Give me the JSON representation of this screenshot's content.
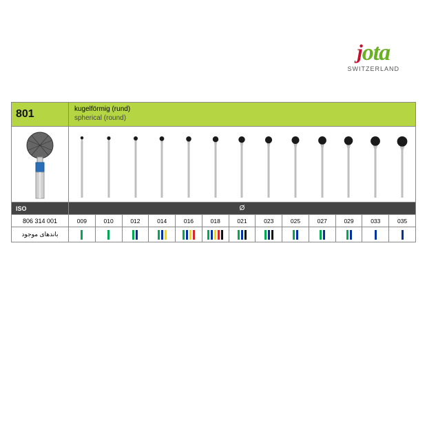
{
  "logo": {
    "j": "j",
    "ota": "ota",
    "sub": "SWITZERLAND"
  },
  "header": {
    "code": "801",
    "title_de": "kugelförmig (rund)",
    "title_en": "spherical (round)"
  },
  "iso": {
    "label": "ISO",
    "symbol": "Ø",
    "code": "806 314 001",
    "bands_label": "باندهای موجود"
  },
  "colors": {
    "green": "#00a651",
    "blue": "#0033a0",
    "yellow": "#ffd400",
    "red": "#d62828",
    "black": "#111111",
    "header_bg": "#b5d642",
    "iso_bg": "#444444",
    "border": "#888888"
  },
  "bur_style": {
    "shaft_width": 3,
    "shaft_color": "#bfbfbf",
    "head_color": "#1a1a1a"
  },
  "sizes": [
    {
      "label": "009",
      "head_r": 2.2,
      "bands": [
        "green"
      ]
    },
    {
      "label": "010",
      "head_r": 2.6,
      "bands": [
        "green"
      ]
    },
    {
      "label": "012",
      "head_r": 3.0,
      "bands": [
        "green",
        "blue"
      ]
    },
    {
      "label": "014",
      "head_r": 3.4,
      "bands": [
        "green",
        "blue",
        "yellow"
      ]
    },
    {
      "label": "016",
      "head_r": 3.8,
      "bands": [
        "green",
        "blue",
        "yellow",
        "red"
      ]
    },
    {
      "label": "018",
      "head_r": 4.2,
      "bands": [
        "green",
        "blue",
        "yellow",
        "red",
        "black"
      ]
    },
    {
      "label": "021",
      "head_r": 4.7,
      "bands": [
        "green",
        "blue",
        "black"
      ]
    },
    {
      "label": "023",
      "head_r": 5.1,
      "bands": [
        "green",
        "blue",
        "black"
      ]
    },
    {
      "label": "025",
      "head_r": 5.5,
      "bands": [
        "green",
        "blue"
      ]
    },
    {
      "label": "027",
      "head_r": 5.9,
      "bands": [
        "green",
        "blue"
      ]
    },
    {
      "label": "029",
      "head_r": 6.3,
      "bands": [
        "green",
        "blue"
      ]
    },
    {
      "label": "033",
      "head_r": 6.9,
      "bands": [
        "blue"
      ]
    },
    {
      "label": "035",
      "head_r": 7.4,
      "bands": [
        "blue"
      ]
    }
  ]
}
